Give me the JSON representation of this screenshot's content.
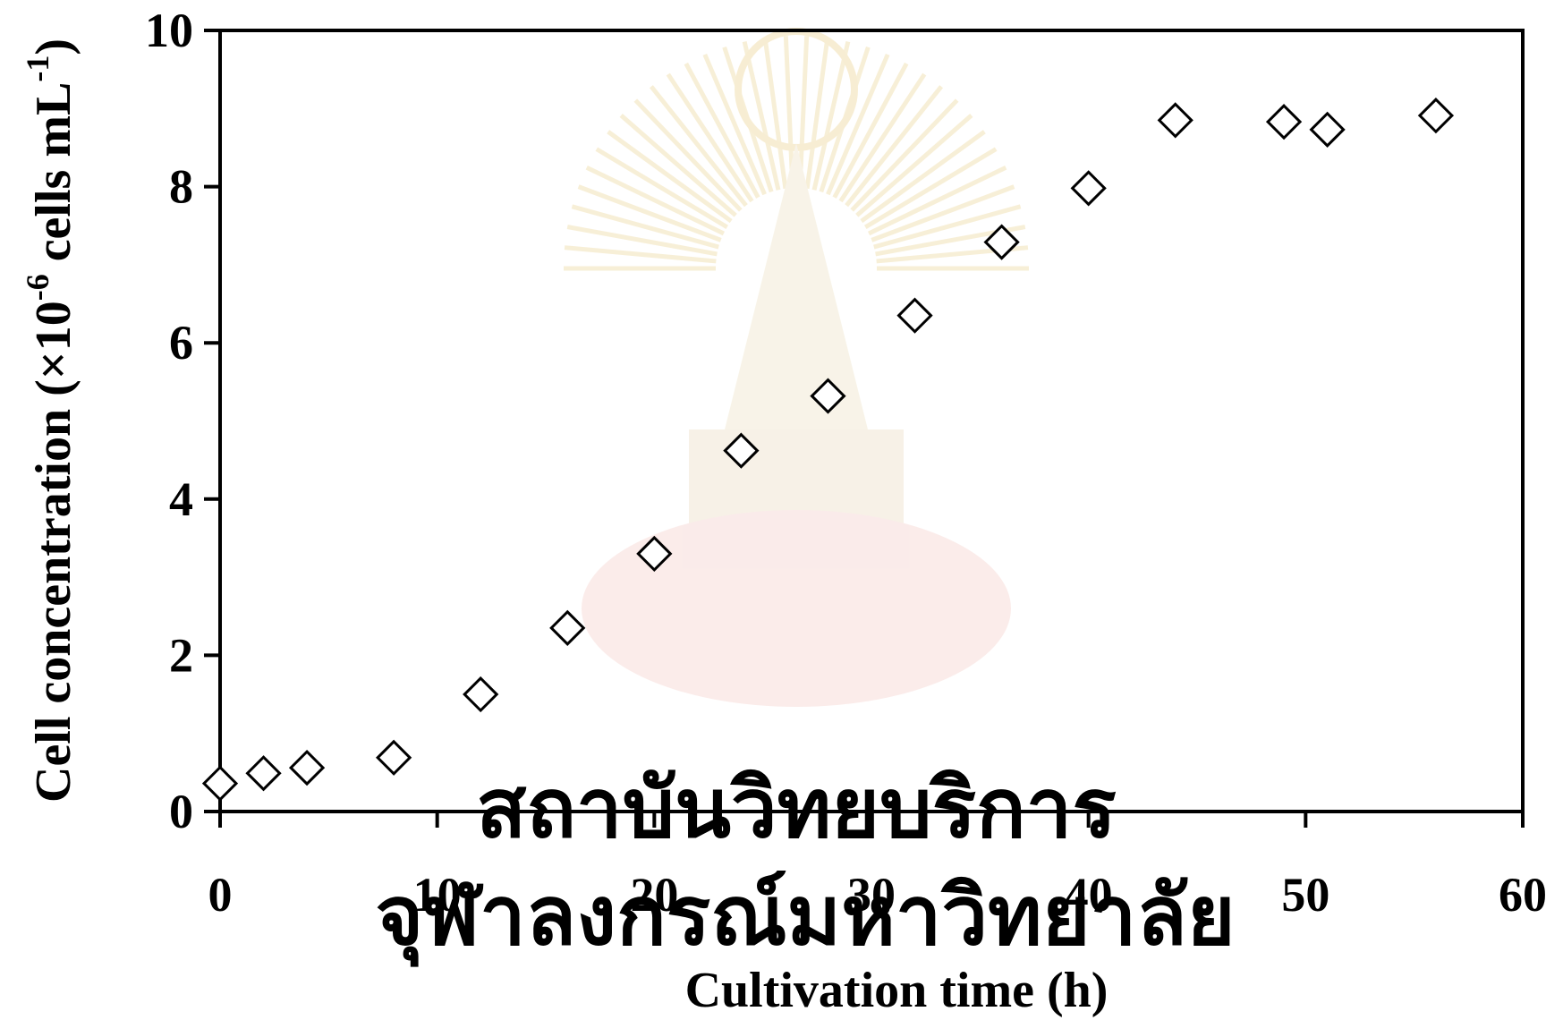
{
  "chart_data": {
    "type": "scatter",
    "xlabel": "Cultivation time (h)",
    "ylabel": {
      "main": "Cell concentration (×10",
      "exp1": "-6",
      "middle": " cells mL",
      "exp2": "-1",
      "end": ")"
    },
    "xlim": [
      0,
      60
    ],
    "ylim": [
      0,
      10
    ],
    "x_ticks": [
      "0",
      "10",
      "20",
      "30",
      "40",
      "50",
      "60"
    ],
    "y_ticks": [
      "0",
      "2",
      "4",
      "6",
      "8",
      "10"
    ],
    "grid": false,
    "legend": null,
    "marker": "open-diamond",
    "series": [
      {
        "x": [
          0,
          2,
          4,
          8,
          12,
          16,
          20,
          24,
          28,
          32,
          36,
          40,
          44,
          49,
          51,
          56
        ],
        "y": [
          0.36,
          0.49,
          0.56,
          0.69,
          1.5,
          2.35,
          3.3,
          4.62,
          5.32,
          6.35,
          7.29,
          7.98,
          8.85,
          8.83,
          8.73,
          8.91
        ]
      }
    ]
  },
  "watermark": {
    "line1": "สถาบันวิทยบริการ",
    "line2": "จุฬาลงกรณ์มหาวิทยาลัย",
    "color": "#e9dcd2"
  }
}
